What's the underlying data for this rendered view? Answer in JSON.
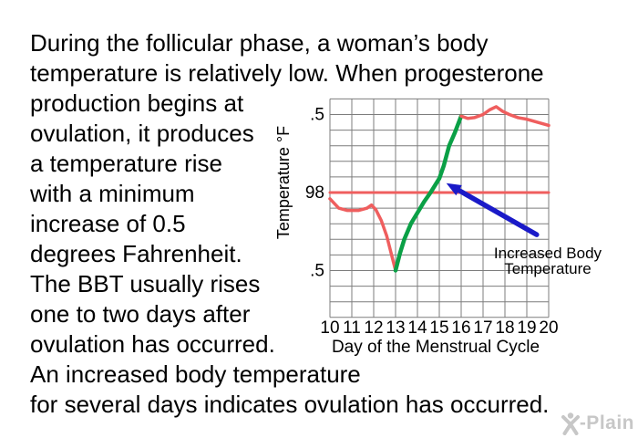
{
  "colors": {
    "red": "#ef5e5e",
    "green": "#0aa046",
    "blue": "#1a1ac8",
    "grid": "#7d7d7d",
    "text": "#000000",
    "watermark": "#c7c7c7",
    "background": "#ffffff"
  },
  "paragraph": {
    "lines": [
      "During the follicular phase, a woman’s body",
      "temperature is relatively low. When progesterone",
      "production begins at",
      "ovulation, it produces",
      "a temperature rise",
      "with a minimum",
      "increase of 0.5",
      "degrees Fahrenheit.",
      "The BBT usually rises",
      "one to two days after",
      "ovulation has occurred.",
      "An increased body temperature",
      "for several days indicates ovulation has occurred."
    ]
  },
  "chart": {
    "annotation": {
      "line1": "Increased Body",
      "line2": "Temperature"
    }
  },
  "chart_data": {
    "type": "line",
    "title": "",
    "xlabel": "Day of the Menstrual Cycle",
    "ylabel": "Temperature °F",
    "xlim": [
      10,
      20
    ],
    "ylim": [
      97.2,
      98.6
    ],
    "x_grid_step": 1,
    "y_grid_step": 0.1,
    "grid": "on",
    "x_ticks": [
      10,
      11,
      12,
      13,
      14,
      15,
      16,
      17,
      18,
      19,
      20
    ],
    "y_ticks": [
      {
        "value": 98.5,
        "label": ".5"
      },
      {
        "value": 98.0,
        "label": "98"
      },
      {
        "value": 97.5,
        "label": ".5"
      }
    ],
    "series": [
      {
        "name": "98-degree-reference-line",
        "color": "red",
        "width": 3,
        "points": [
          [
            10,
            98.0
          ],
          [
            20,
            98.0
          ]
        ]
      },
      {
        "name": "follicular-phase-temperature",
        "color": "red",
        "width": 3.5,
        "points": [
          [
            10,
            97.96
          ],
          [
            10.4,
            97.9
          ],
          [
            10.8,
            97.885
          ],
          [
            11.3,
            97.885
          ],
          [
            11.7,
            97.9
          ],
          [
            11.9,
            97.92
          ],
          [
            12.1,
            97.89
          ],
          [
            12.35,
            97.82
          ],
          [
            12.6,
            97.72
          ],
          [
            12.8,
            97.61
          ],
          [
            13,
            97.5
          ]
        ]
      },
      {
        "name": "ovulation-temperature-rise",
        "color": "green",
        "width": 4.5,
        "points": [
          [
            13,
            97.5
          ],
          [
            13.2,
            97.61
          ],
          [
            13.4,
            97.7
          ],
          [
            13.7,
            97.8
          ],
          [
            14,
            97.87
          ],
          [
            14.3,
            97.94
          ],
          [
            14.6,
            98.0
          ],
          [
            15,
            98.09
          ],
          [
            15.2,
            98.17
          ],
          [
            15.45,
            98.3
          ],
          [
            15.7,
            98.38
          ],
          [
            16,
            98.49
          ]
        ]
      },
      {
        "name": "post-ovulation-temperature",
        "color": "red",
        "width": 3.5,
        "points": [
          [
            16,
            98.49
          ],
          [
            16.3,
            98.475
          ],
          [
            16.6,
            98.48
          ],
          [
            17,
            98.5
          ],
          [
            17.3,
            98.53
          ],
          [
            17.6,
            98.55
          ],
          [
            17.9,
            98.52
          ],
          [
            18.2,
            98.5
          ],
          [
            18.6,
            98.48
          ],
          [
            19,
            98.47
          ],
          [
            19.5,
            98.45
          ],
          [
            20,
            98.43
          ]
        ]
      }
    ],
    "annotations": [
      {
        "text": "Increased Body Temperature",
        "arrow": {
          "from": [
            19.45,
            97.73
          ],
          "to": [
            15.32,
            98.06
          ]
        }
      }
    ]
  },
  "watermark": {
    "logo_letter": "X",
    "label": "-Plain"
  }
}
